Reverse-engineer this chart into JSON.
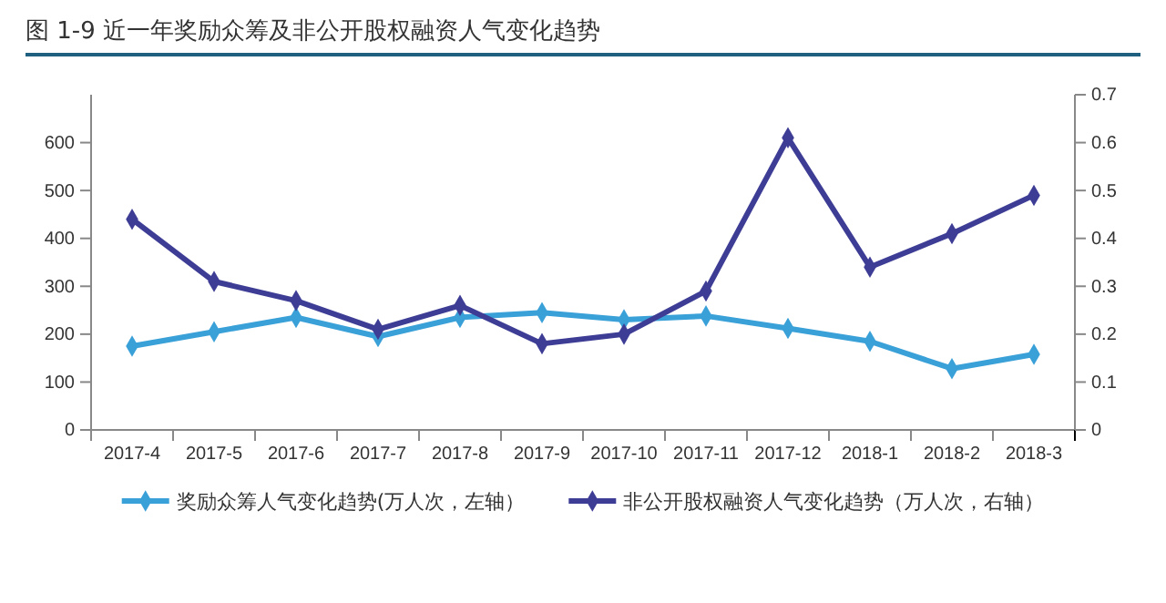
{
  "chart_data": {
    "type": "line",
    "title": "图 1-9    近一年奖励众筹及非公开股权融资人气变化趋势",
    "categories": [
      "2017-4",
      "2017-5",
      "2017-6",
      "2017-7",
      "2017-8",
      "2017-9",
      "2017-10",
      "2017-11",
      "2017-12",
      "2018-1",
      "2018-2",
      "2018-3"
    ],
    "series": [
      {
        "name": "奖励众筹人气变化趋势(万人次，左轴）",
        "color": "#3aa0d8",
        "values": [
          175,
          205,
          235,
          195,
          235,
          245,
          230,
          238,
          212,
          185,
          128,
          158
        ]
      },
      {
        "name": "非公开股权融资人气变化趋势（万人次，右轴）",
        "color": "#3e3d96",
        "axis": "y2",
        "values": [
          0.44,
          0.31,
          0.27,
          0.21,
          0.26,
          0.18,
          0.2,
          0.29,
          0.61,
          0.34,
          0.41,
          0.49
        ]
      }
    ],
    "ylim": [
      0,
      700
    ],
    "yticks": [
      0,
      100,
      200,
      300,
      400,
      500,
      600
    ],
    "y2lim": [
      0,
      0.7
    ],
    "y2ticks": [
      0,
      0.1,
      0.2,
      0.3,
      0.4,
      0.5,
      0.6,
      0.7
    ],
    "marker": "diamond",
    "line_style": "solid",
    "legend": "bottom",
    "grid": false
  }
}
